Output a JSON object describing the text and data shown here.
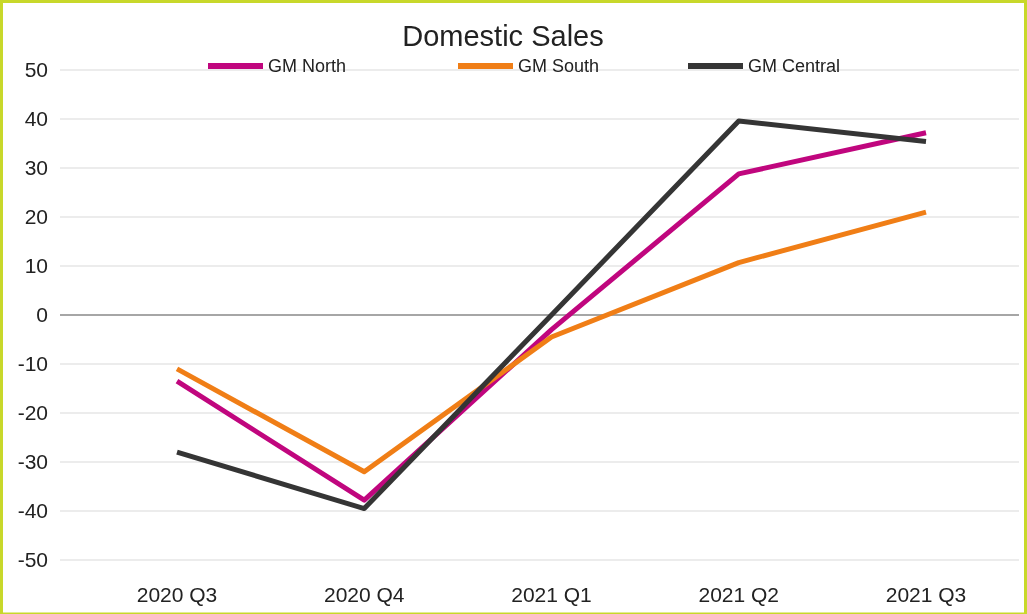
{
  "chart_data": {
    "type": "line",
    "title": "Domestic Sales",
    "categories": [
      "2020 Q3",
      "2020 Q4",
      "2021 Q1",
      "2021 Q2",
      "2021 Q3"
    ],
    "series": [
      {
        "name": "GM North",
        "color": "#c0067e",
        "values": [
          -13.5,
          -37.8,
          -3,
          28.8,
          37.2
        ]
      },
      {
        "name": "GM South",
        "color": "#f07e16",
        "values": [
          -11,
          -32,
          -4.5,
          10.7,
          21
        ]
      },
      {
        "name": "GM Central",
        "color": "#353535",
        "values": [
          -28,
          -39.5,
          0,
          39.6,
          35.4
        ]
      }
    ],
    "ylim": [
      -50,
      50
    ],
    "yticks": [
      -50,
      -40,
      -30,
      -20,
      -10,
      0,
      10,
      20,
      30,
      40,
      50
    ],
    "grid": "y",
    "legend": "top",
    "marker": "none",
    "line_style": "solid"
  }
}
